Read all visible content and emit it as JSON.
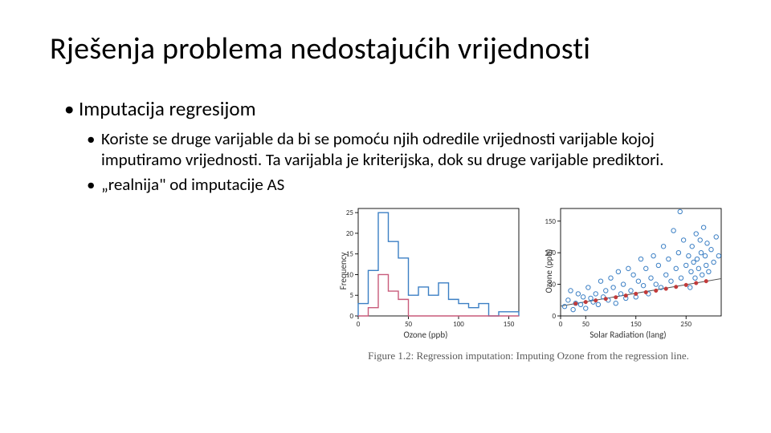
{
  "title": "Rješenja problema nedostajućih vrijednosti",
  "bullet1": "Imputacija regresijom",
  "bullet2a": "Koriste se druge varijable da bi se pomoću njih odredile vrijednosti varijable kojoj imputiramo vrijednosti. Ta varijabla je kriterijska, dok su druge varijable prediktori.",
  "bullet2b": "„realnija\" od imputacije AS",
  "figure_caption": "Figure 1.2: Regression imputation: Imputing Ozone from the regression line.",
  "histogram": {
    "type": "histogram",
    "xlabel": "Ozone (ppb)",
    "ylabel": "Frequency",
    "xlim": [
      0,
      160
    ],
    "xtick_step": 50,
    "xticks": [
      0,
      50,
      100,
      150
    ],
    "ylim": [
      0,
      26
    ],
    "yticks": [
      0,
      5,
      10,
      15,
      20,
      25
    ],
    "bin_width": 10,
    "series": [
      {
        "color": "#3b7fc4",
        "bins": [
          3,
          11,
          25,
          18,
          14,
          5,
          7,
          5,
          8,
          4,
          3,
          2,
          3,
          0,
          1,
          1
        ],
        "line_width": 1.4
      },
      {
        "color": "#c85a7a",
        "bins": [
          0,
          2,
          10,
          6,
          4,
          0,
          0,
          0,
          0,
          0,
          0,
          0,
          0,
          0,
          0,
          0
        ],
        "line_width": 1.4
      }
    ],
    "background_color": "#ffffff",
    "axis_color": "#000000",
    "tick_fontsize": 9,
    "label_fontsize": 11
  },
  "scatter": {
    "type": "scatter",
    "xlabel": "Solar Radiation (lang)",
    "ylabel": "Ozone (ppb)",
    "xlim": [
      0,
      320
    ],
    "xticks": [
      0,
      50,
      150,
      250
    ],
    "ylim": [
      0,
      170
    ],
    "yticks": [
      0,
      50,
      100,
      150
    ],
    "marker_size": 3.4,
    "series_blue": {
      "color": "#3b7fc4",
      "fill": "none",
      "points": [
        [
          8,
          15
        ],
        [
          15,
          25
        ],
        [
          20,
          40
        ],
        [
          25,
          10
        ],
        [
          30,
          20
        ],
        [
          35,
          35
        ],
        [
          40,
          18
        ],
        [
          45,
          30
        ],
        [
          50,
          12
        ],
        [
          55,
          45
        ],
        [
          60,
          28
        ],
        [
          65,
          22
        ],
        [
          70,
          35
        ],
        [
          75,
          18
        ],
        [
          80,
          55
        ],
        [
          85,
          30
        ],
        [
          90,
          40
        ],
        [
          95,
          25
        ],
        [
          100,
          60
        ],
        [
          105,
          45
        ],
        [
          110,
          20
        ],
        [
          115,
          70
        ],
        [
          120,
          35
        ],
        [
          125,
          50
        ],
        [
          130,
          28
        ],
        [
          135,
          75
        ],
        [
          140,
          40
        ],
        [
          145,
          65
        ],
        [
          150,
          30
        ],
        [
          155,
          55
        ],
        [
          160,
          90
        ],
        [
          165,
          48
        ],
        [
          170,
          75
        ],
        [
          175,
          35
        ],
        [
          180,
          60
        ],
        [
          185,
          95
        ],
        [
          190,
          50
        ],
        [
          195,
          80
        ],
        [
          200,
          45
        ],
        [
          205,
          110
        ],
        [
          210,
          65
        ],
        [
          215,
          90
        ],
        [
          220,
          55
        ],
        [
          225,
          135
        ],
        [
          230,
          75
        ],
        [
          235,
          100
        ],
        [
          238,
          165
        ],
        [
          240,
          60
        ],
        [
          245,
          120
        ],
        [
          250,
          80
        ],
        [
          255,
          95
        ],
        [
          258,
          45
        ],
        [
          260,
          70
        ],
        [
          262,
          110
        ],
        [
          265,
          85
        ],
        [
          268,
          60
        ],
        [
          270,
          130
        ],
        [
          272,
          90
        ],
        [
          275,
          75
        ],
        [
          278,
          120
        ],
        [
          280,
          100
        ],
        [
          282,
          65
        ],
        [
          285,
          140
        ],
        [
          288,
          95
        ],
        [
          290,
          80
        ],
        [
          292,
          115
        ],
        [
          295,
          70
        ],
        [
          300,
          105
        ],
        [
          305,
          85
        ],
        [
          310,
          125
        ],
        [
          315,
          95
        ]
      ]
    },
    "series_red": {
      "color": "#c23a3a",
      "fill": "#c23a3a",
      "points": [
        [
          30,
          19.5
        ],
        [
          50,
          22
        ],
        [
          70,
          24.5
        ],
        [
          90,
          27
        ],
        [
          110,
          29.5
        ],
        [
          130,
          32.2
        ],
        [
          150,
          35
        ],
        [
          170,
          37.5
        ],
        [
          190,
          40
        ],
        [
          210,
          43
        ],
        [
          230,
          46
        ],
        [
          250,
          49
        ],
        [
          270,
          52
        ],
        [
          290,
          55
        ]
      ]
    },
    "regression": {
      "color": "#555555",
      "width": 1,
      "x1": 0,
      "y1": 15.5,
      "x2": 320,
      "y2": 59
    },
    "background_color": "#ffffff",
    "axis_color": "#000000",
    "tick_fontsize": 9,
    "label_fontsize": 11
  }
}
